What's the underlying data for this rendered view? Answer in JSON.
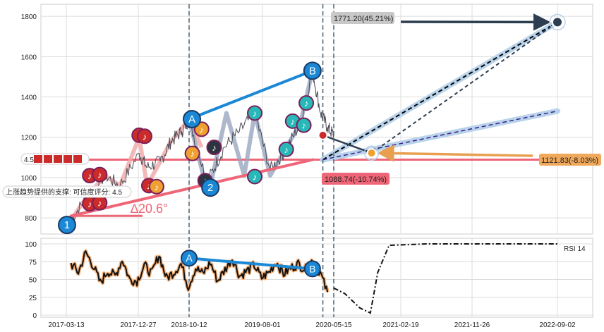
{
  "colors": {
    "background": "#ffffff",
    "grid": "#dcdcdc",
    "axis": "#222222",
    "price_line": "#4a4a55",
    "support_line": "#ee6677",
    "trend_blue": "#1b88d6",
    "projection_dark": "#2c3e50",
    "projection_purple": "#3a1f8a",
    "projection_halo": "#b9d3ea",
    "orange_arrow": "#e8a050",
    "red_marker": "#cc2b2b",
    "orange_marker": "#f0a030",
    "teal_marker": "#28b8b8",
    "dark_marker": "#2c3440",
    "rsi_line": "#111111",
    "rsi_glow": "#f5b27a",
    "rsi_forecast": "#111111"
  },
  "chart_data": [
    {
      "type": "line",
      "panel": "price",
      "title": "",
      "ylim": [
        720,
        1860
      ],
      "xlim": [
        "2017-01-01",
        "2022-12-31"
      ],
      "yticks": [
        800,
        1000,
        1200,
        1400,
        1600,
        1800
      ],
      "grid": true,
      "series": [
        {
          "x": [
            "2017-04-01",
            "2017-06-01",
            "2017-08-15",
            "2017-10-15",
            "2018-01-01",
            "2018-02-15",
            "2018-05-01",
            "2018-07-01",
            "2018-09-01",
            "2018-10-12",
            "2018-12-15",
            "2019-01-01",
            "2019-03-01",
            "2019-05-01",
            "2019-07-01",
            "2019-09-01",
            "2019-11-01",
            "2020-01-01",
            "2020-02-19",
            "2020-03-23",
            "2020-04-20",
            "2020-05-15"
          ],
          "values": [
            790,
            900,
            1010,
            960,
            1120,
            1050,
            1080,
            1180,
            1230,
            1290,
            1010,
            1000,
            1150,
            1230,
            1320,
            1040,
            1130,
            1270,
            1530,
            1320,
            1250,
            1210
          ]
        }
      ],
      "patterns": [
        {
          "label": "A",
          "date": "2018-10-12",
          "value": 1290
        },
        {
          "label": "B",
          "date": "2020-02-19",
          "value": 1530
        },
        {
          "label": "1",
          "date": "2017-03-27",
          "value": 765
        },
        {
          "label": "2",
          "date": "2019-01-05",
          "value": 950
        }
      ],
      "support_line": {
        "from": [
          "2017-04-01",
          810
        ],
        "to": [
          "2020-02-19",
          1088.74
        ],
        "label": "1088.74(-10.74%)"
      },
      "horizontal_line": {
        "value": 1088.74
      },
      "angle_label": "∆20.6°",
      "angle_line": {
        "from": [
          "2017-04-01",
          810
        ],
        "to": [
          "2018-01-20",
          810
        ]
      },
      "targets": [
        {
          "label": "1771.20(45.21%)",
          "date": "2022-09-02",
          "value": 1771.2
        },
        {
          "label": "1121.83(-8.03%)",
          "date": "2020-10-20",
          "value": 1121.83
        }
      ],
      "vertical_markers": [
        "2018-10-12",
        "2020-04-01",
        "2020-05-15"
      ],
      "annotation_support": "上涨趋势提供的支撑: 可信度评分: 4.5",
      "rating_tag": "4.5"
    },
    {
      "type": "line",
      "panel": "rsi",
      "ylim": [
        0,
        105
      ],
      "yticks": [
        0,
        25,
        50,
        75,
        100
      ],
      "legend_label": "RSI 14",
      "x_ticks": [
        "2017-03-13",
        "2017-12-27",
        "2018-10-12",
        "2019-08-01",
        "2020-05-15",
        "2021-02-19",
        "2021-11-26",
        "2022-09-02"
      ],
      "trend_line": {
        "from": [
          "2018-10-12",
          80
        ],
        "to": [
          "2020-02-19",
          65
        ]
      },
      "rsi_values": [
        72,
        60,
        88,
        70,
        45,
        62,
        55,
        78,
        50,
        48,
        70,
        58,
        85,
        52,
        60,
        72,
        40,
        66,
        58,
        74,
        48,
        64,
        80,
        55,
        62,
        70,
        52,
        60,
        75,
        58,
        66,
        72,
        64,
        78,
        60,
        30
      ],
      "forecast": [
        {
          "x": "2020-05-15",
          "y": 38
        },
        {
          "x": "2020-07-01",
          "y": 30
        },
        {
          "x": "2020-09-01",
          "y": 10
        },
        {
          "x": "2020-10-15",
          "y": 3
        },
        {
          "x": "2020-11-15",
          "y": 60
        },
        {
          "x": "2021-01-01",
          "y": 98
        },
        {
          "x": "2021-06-01",
          "y": 100
        },
        {
          "x": "2022-09-02",
          "y": 100
        }
      ]
    }
  ],
  "labels": {
    "A_price": "A",
    "B_price": "B",
    "one": "1",
    "two": "2",
    "A_rsi": "A",
    "B_rsi": "B",
    "rsi_legend": "RSI 14",
    "angle": "∆20.6°",
    "support": "上涨趋势提供的支撑: 可信度评分: 4.5",
    "rating": "4.5",
    "target_up": "1771.20(45.21%)",
    "target_down": "1121.83(-8.03%)",
    "support_price": "1088.74(-10.74%)"
  }
}
